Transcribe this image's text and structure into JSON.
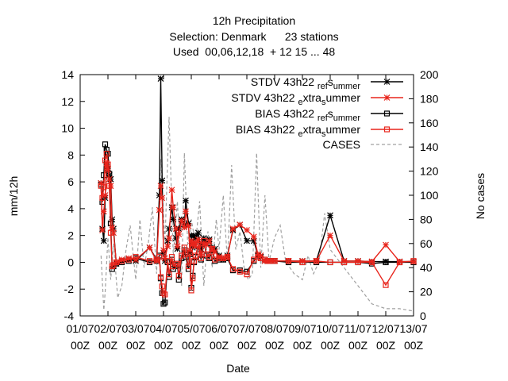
{
  "title_lines": [
    "12h Precipitation",
    "Selection: Denmark      23 stations",
    "Used  00,06,12,18  + 12 15 ... 48"
  ],
  "chart_data": {
    "type": "line",
    "title": "12h Precipitation",
    "subtitle": [
      "Selection: Denmark      23 stations",
      "Used  00,06,12,18  + 12 15 ... 48"
    ],
    "xlabel": "Date",
    "ylabel": "mm/12h",
    "y2label": "No cases",
    "ylim": [
      -4,
      14
    ],
    "y2lim": [
      0,
      200
    ],
    "yticks": [
      -4,
      -2,
      0,
      2,
      4,
      6,
      8,
      10,
      12,
      14
    ],
    "y2ticks": [
      0,
      20,
      40,
      60,
      80,
      100,
      120,
      140,
      160,
      180,
      200
    ],
    "xlim": [
      1,
      13
    ],
    "xticks": [
      {
        "x": 1,
        "line1": "01/07",
        "line2": "00Z"
      },
      {
        "x": 2,
        "line1": "02/07",
        "line2": "00Z"
      },
      {
        "x": 3,
        "line1": "03/07",
        "line2": "00Z"
      },
      {
        "x": 4,
        "line1": "04/07",
        "line2": "00Z"
      },
      {
        "x": 5,
        "line1": "05/07",
        "line2": "00Z"
      },
      {
        "x": 6,
        "line1": "06/07",
        "line2": "00Z"
      },
      {
        "x": 7,
        "line1": "07/07",
        "line2": "00Z"
      },
      {
        "x": 8,
        "line1": "08/07",
        "line2": "00Z"
      },
      {
        "x": 9,
        "line1": "09/07",
        "line2": "00Z"
      },
      {
        "x": 10,
        "line1": "10/07",
        "line2": "00Z"
      },
      {
        "x": 11,
        "line1": "11/07",
        "line2": "00Z"
      },
      {
        "x": 12,
        "line1": "12/07",
        "line2": "00Z"
      },
      {
        "x": 13,
        "line1": "13/07",
        "line2": "00Z"
      }
    ],
    "legend_position": "top-right",
    "series": [
      {
        "name": "STDV 43h22_ref_summer",
        "legend_main": "STDV 43h22",
        "legend_sub": "ref",
        "legend_mid": "s",
        "legend_tail": "ummer",
        "color": "#000000",
        "marker": "star",
        "axis": "left",
        "x": [
          1.75,
          1.8,
          1.85,
          1.9,
          1.95,
          2.0,
          2.05,
          2.1,
          2.15,
          2.2,
          2.3,
          2.5,
          2.75,
          3.0,
          3.5,
          3.75,
          3.85,
          3.9,
          3.95,
          4.0,
          4.05,
          4.15,
          4.2,
          4.3,
          4.35,
          4.45,
          4.5,
          4.55,
          4.65,
          4.75,
          4.8,
          4.9,
          4.95,
          5.0,
          5.05,
          5.1,
          5.15,
          5.25,
          5.35,
          5.45,
          5.55,
          5.65,
          5.75,
          5.85,
          6.0,
          6.15,
          6.3,
          6.5,
          6.75,
          7.0,
          7.25,
          7.4,
          7.5,
          7.65,
          7.75,
          7.85,
          8.0,
          8.5,
          9.0,
          9.5,
          10.0,
          10.5,
          11.0,
          11.5,
          12.0,
          12.5,
          13.0
        ],
        "y": [
          5.9,
          2.5,
          1.6,
          4.8,
          7.3,
          7.0,
          6.5,
          6.2,
          3.2,
          2.5,
          -0.1,
          0.1,
          0.2,
          0.1,
          1.1,
          0.2,
          5.0,
          13.7,
          6.1,
          0.7,
          0.1,
          1.6,
          2.5,
          4.1,
          3.2,
          1.8,
          1.0,
          2.5,
          3.2,
          2.8,
          4.6,
          2.9,
          0.7,
          2.0,
          1.1,
          2.0,
          1.8,
          2.2,
          1.0,
          1.8,
          1.4,
          1.7,
          1.1,
          1.0,
          0.5,
          0.2,
          0.5,
          2.4,
          2.8,
          1.6,
          1.6,
          0.5,
          0.4,
          0.1,
          0.1,
          0.1,
          0.1,
          0.1,
          0.1,
          0.1,
          3.5,
          0.1,
          0.1,
          0.05,
          0.05,
          0.05,
          0.05
        ]
      },
      {
        "name": "STDV 43h22_extra_summer",
        "legend_main": "STDV 43h22",
        "legend_sub": "e",
        "legend_mid": "xtra",
        "legend_sub2": "s",
        "legend_tail": "ummer",
        "color": "#e8251c",
        "marker": "star",
        "axis": "left",
        "x": [
          1.75,
          1.8,
          1.85,
          1.9,
          1.95,
          2.0,
          2.05,
          2.1,
          2.15,
          2.2,
          2.3,
          2.5,
          2.75,
          3.0,
          3.5,
          3.75,
          3.85,
          3.9,
          3.95,
          4.0,
          4.05,
          4.15,
          4.2,
          4.3,
          4.35,
          4.45,
          4.5,
          4.55,
          4.65,
          4.75,
          4.8,
          4.9,
          4.95,
          5.0,
          5.05,
          5.1,
          5.15,
          5.25,
          5.35,
          5.45,
          5.55,
          5.65,
          5.75,
          5.85,
          6.0,
          6.15,
          6.3,
          6.5,
          6.75,
          7.0,
          7.25,
          7.4,
          7.5,
          7.65,
          7.75,
          7.85,
          8.0,
          8.5,
          9.0,
          9.5,
          10.0,
          10.5,
          11.0,
          11.5,
          12.0,
          12.5,
          13.0
        ],
        "y": [
          5.9,
          2.4,
          3.8,
          5.0,
          7.4,
          6.9,
          6.2,
          5.7,
          2.6,
          2.2,
          0.0,
          0.2,
          0.3,
          0.2,
          1.1,
          0.1,
          3.9,
          5.7,
          4.8,
          0.9,
          0.3,
          1.2,
          1.8,
          5.4,
          4.1,
          2.5,
          1.2,
          2.1,
          3.1,
          2.6,
          3.8,
          2.7,
          0.9,
          1.6,
          1.3,
          1.5,
          1.2,
          1.7,
          0.6,
          1.4,
          1.3,
          1.6,
          1.0,
          0.8,
          0.4,
          0.3,
          0.4,
          2.5,
          2.8,
          2.4,
          1.9,
          0.6,
          0.5,
          0.1,
          0.1,
          0.1,
          0.1,
          0.1,
          0.1,
          0.1,
          2.0,
          0.1,
          0.1,
          0.05,
          1.3,
          0.05,
          0.05
        ]
      },
      {
        "name": "BIAS 43h22_ref_summer",
        "legend_main": "BIAS 43h22",
        "legend_sub": "ref",
        "legend_mid": "s",
        "legend_tail": "ummer",
        "color": "#000000",
        "marker": "square",
        "axis": "left",
        "x": [
          1.75,
          1.8,
          1.85,
          1.9,
          1.95,
          2.0,
          2.05,
          2.1,
          2.15,
          2.2,
          2.3,
          2.5,
          2.75,
          3.0,
          3.5,
          3.75,
          3.85,
          3.9,
          3.95,
          4.0,
          4.05,
          4.15,
          4.2,
          4.3,
          4.35,
          4.45,
          4.5,
          4.55,
          4.65,
          4.75,
          4.8,
          4.9,
          4.95,
          5.0,
          5.05,
          5.1,
          5.15,
          5.25,
          5.35,
          5.45,
          5.55,
          5.65,
          5.75,
          5.85,
          6.0,
          6.15,
          6.3,
          6.5,
          6.75,
          7.0,
          7.25,
          7.4,
          7.5,
          7.65,
          7.75,
          7.85,
          8.0,
          8.5,
          9.0,
          9.5,
          10.0,
          10.5,
          11.0,
          11.5,
          12.0,
          12.5,
          13.0
        ],
        "y": [
          5.8,
          4.5,
          6.5,
          8.8,
          8.4,
          8.1,
          6.6,
          2.9,
          -0.5,
          -0.3,
          -0.1,
          0.0,
          0.1,
          0.3,
          0.0,
          0.1,
          0.5,
          -1.2,
          -2.3,
          -3.1,
          -3.0,
          0.0,
          -1.1,
          0.2,
          -0.5,
          -0.3,
          -0.2,
          -1.3,
          0.3,
          0.9,
          0.4,
          -0.5,
          0.6,
          -1.9,
          -1.0,
          0.0,
          0.4,
          1.2,
          0.2,
          1.5,
          0.5,
          0.3,
          0.9,
          0.1,
          0.2,
          0.2,
          0.3,
          -0.6,
          -0.6,
          -0.7,
          0.1,
          0.5,
          0.3,
          0.2,
          0.1,
          0.1,
          0.1,
          0.0,
          0.0,
          0.0,
          0.0,
          0.0,
          0.0,
          -0.1,
          0.0,
          0.0,
          0.0
        ]
      },
      {
        "name": "BIAS 43h22_extra_summer",
        "legend_main": "BIAS 43h22",
        "legend_sub": "e",
        "legend_mid": "xtra",
        "legend_sub2": "s",
        "legend_tail": "ummer",
        "color": "#e8251c",
        "marker": "square",
        "axis": "left",
        "x": [
          1.75,
          1.8,
          1.85,
          1.9,
          1.95,
          2.0,
          2.05,
          2.1,
          2.15,
          2.2,
          2.3,
          2.5,
          2.75,
          3.0,
          3.5,
          3.75,
          3.85,
          3.9,
          3.95,
          4.0,
          4.05,
          4.15,
          4.2,
          4.3,
          4.35,
          4.45,
          4.5,
          4.55,
          4.65,
          4.75,
          4.8,
          4.9,
          4.95,
          5.0,
          5.05,
          5.1,
          5.15,
          5.25,
          5.35,
          5.45,
          5.55,
          5.65,
          5.75,
          5.85,
          6.0,
          6.15,
          6.3,
          6.5,
          6.75,
          7.0,
          7.25,
          7.4,
          7.5,
          7.65,
          7.75,
          7.85,
          8.0,
          8.5,
          9.0,
          9.5,
          10.0,
          10.5,
          11.0,
          11.5,
          12.0,
          12.5,
          13.0
        ],
        "y": [
          5.7,
          4.8,
          5.6,
          7.6,
          8.1,
          7.3,
          5.7,
          2.2,
          -0.3,
          -0.2,
          0.0,
          0.1,
          0.2,
          0.4,
          0.1,
          0.2,
          0.4,
          -1.1,
          -1.8,
          -2.3,
          -2.4,
          0.1,
          -0.9,
          0.4,
          -0.3,
          -0.1,
          -0.1,
          -1.0,
          0.5,
          1.1,
          0.6,
          -0.3,
          0.7,
          -2.1,
          -1.2,
          0.1,
          0.5,
          1.3,
          0.3,
          1.6,
          0.6,
          0.4,
          1.0,
          0.2,
          0.3,
          0.3,
          0.4,
          -0.5,
          -0.7,
          -0.9,
          0.2,
          0.4,
          0.3,
          0.2,
          0.1,
          0.1,
          0.1,
          0.1,
          0.0,
          0.1,
          0.0,
          0.0,
          0.0,
          0.0,
          -1.7,
          0.0,
          0.1
        ]
      },
      {
        "name": "CASES",
        "legend_main": "CASES",
        "color": "#a0a0a0",
        "marker": "none",
        "dashed": true,
        "axis": "right",
        "x": [
          1.75,
          1.85,
          1.9,
          2.0,
          2.1,
          2.2,
          2.35,
          2.5,
          2.65,
          2.8,
          3.0,
          3.15,
          3.3,
          3.45,
          3.6,
          3.75,
          3.9,
          4.05,
          4.2,
          4.35,
          4.5,
          4.65,
          4.75,
          4.9,
          5.0,
          5.15,
          5.3,
          5.45,
          5.6,
          5.75,
          5.9,
          6.0,
          6.15,
          6.3,
          6.45,
          6.6,
          6.75,
          6.9,
          7.05,
          7.2,
          7.35,
          7.5,
          7.65,
          7.8,
          8.0,
          8.2,
          8.4,
          8.7,
          9.0,
          9.2,
          9.4,
          9.6,
          9.8,
          10.0,
          10.5,
          11.0,
          11.5,
          12.0,
          12.5,
          13.0
        ],
        "y": [
          50,
          5,
          20,
          65,
          30,
          60,
          15,
          25,
          55,
          75,
          30,
          80,
          40,
          60,
          90,
          35,
          130,
          60,
          165,
          50,
          95,
          25,
          135,
          40,
          80,
          60,
          95,
          25,
          70,
          40,
          80,
          55,
          100,
          45,
          125,
          55,
          70,
          40,
          30,
          35,
          135,
          40,
          100,
          45,
          65,
          75,
          45,
          35,
          30,
          50,
          35,
          45,
          85,
          55,
          40,
          25,
          10,
          6,
          6,
          4
        ]
      }
    ]
  }
}
